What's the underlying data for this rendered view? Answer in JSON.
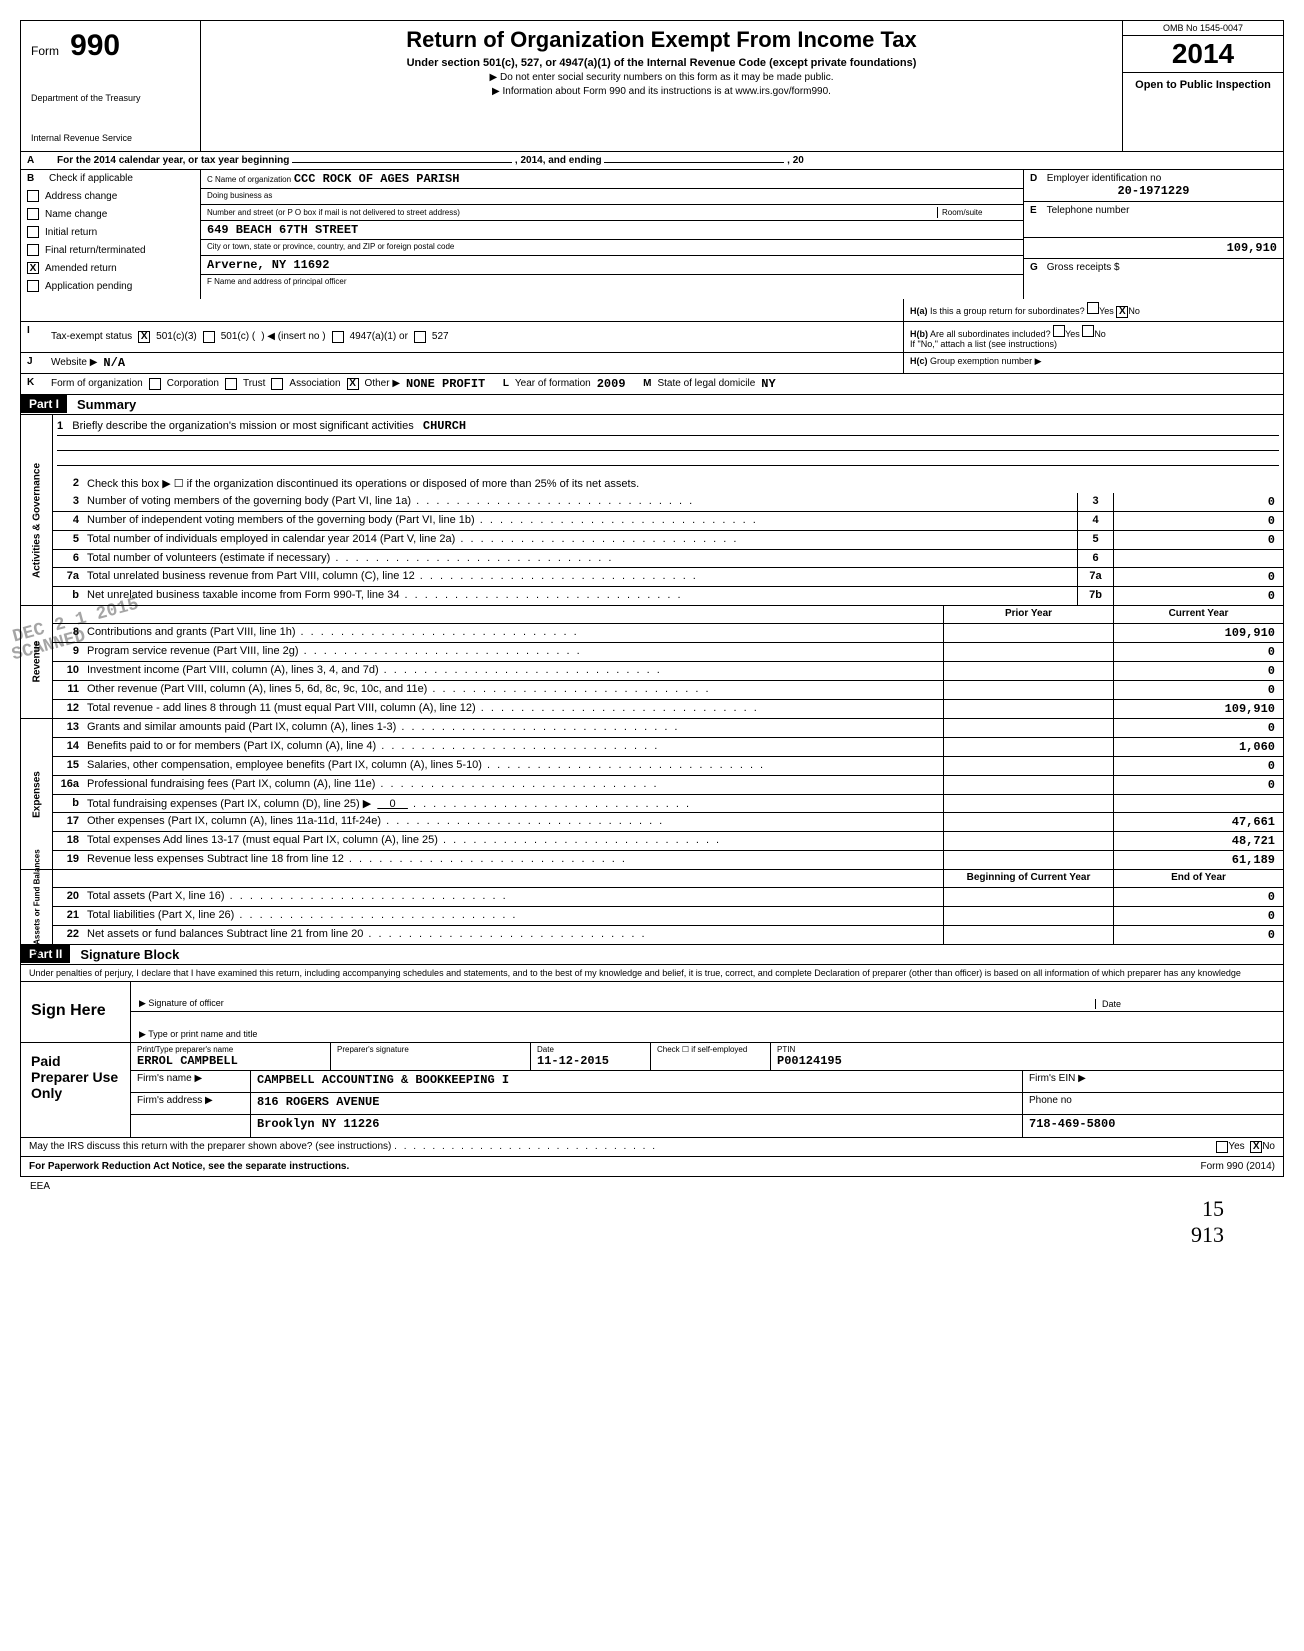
{
  "form": {
    "number_label": "Form",
    "number": "990",
    "dept1": "Department of the Treasury",
    "dept2": "Internal Revenue Service",
    "title": "Return of Organization Exempt From Income Tax",
    "subtitle": "Under section 501(c), 527, or 4947(a)(1) of the Internal Revenue Code (except private foundations)",
    "line1": "▶ Do not enter social security numbers on this form as it may be made public.",
    "line2": "▶ Information about Form 990 and its instructions is at www.irs.gov/form990.",
    "omb": "OMB No 1545-0047",
    "year": "2014",
    "open": "Open to Public Inspection"
  },
  "row_a": {
    "lbl": "A",
    "text1": "For the 2014 calendar year, or tax year beginning",
    "text2": ", 2014, and ending",
    "text3": ", 20"
  },
  "section_b": {
    "lbl": "B",
    "heading": "Check if applicable",
    "items": [
      "Address change",
      "Name change",
      "Initial return",
      "Final return/terminated",
      "Amended return",
      "Application pending"
    ],
    "amended_checked": "X"
  },
  "section_c": {
    "lbl_name": "C  Name of organization",
    "name": "CCC ROCK OF AGES PARISH",
    "dba_lbl": "Doing business as",
    "addr_lbl": "Number and street (or P O box if mail is not delivered to street address)",
    "room_lbl": "Room/suite",
    "addr": "649 BEACH 67TH STREET",
    "city_lbl": "City or town, state or province, country, and ZIP or foreign postal code",
    "city": "Arverne, NY 11692",
    "f_lbl": "F  Name and address of principal officer"
  },
  "section_de": {
    "d_lbl": "D",
    "d_text": "Employer identification no",
    "d_val": "20-1971229",
    "e_lbl": "E",
    "e_text": "Telephone number",
    "gross_val": "109,910",
    "g_lbl": "G",
    "g_text": "Gross receipts $"
  },
  "section_h": {
    "ha_lbl": "H(a)",
    "ha_text": "Is this a group return for subordinates?",
    "ha_no": "X",
    "hb_lbl": "H(b)",
    "hb_text": "Are all subordinates included?",
    "hb_note": "If \"No,\" attach a list (see instructions)",
    "hc_lbl": "H(c)",
    "hc_text": "Group exemption number ▶",
    "yes": "Yes",
    "no": "No"
  },
  "row_i": {
    "lbl": "I",
    "text": "Tax-exempt status",
    "c3_checked": "X",
    "opt1": "501(c)(3)",
    "opt2": "501(c) (",
    "opt2b": ") ◀ (insert no )",
    "opt3": "4947(a)(1) or",
    "opt4": "527"
  },
  "row_j": {
    "lbl": "J",
    "text": "Website ▶",
    "val": "N/A"
  },
  "row_k": {
    "lbl": "K",
    "text": "Form of organization",
    "opts": [
      "Corporation",
      "Trust",
      "Association",
      "Other ▶"
    ],
    "other_checked": "X",
    "other_val": "NONE PROFIT",
    "l_lbl": "L",
    "l_text": "Year of formation",
    "l_val": "2009",
    "m_lbl": "M",
    "m_text": "State of legal domicile",
    "m_val": "NY"
  },
  "part1": {
    "hdr": "Part I",
    "title": "Summary"
  },
  "activities": {
    "side": "Activities & Governance",
    "l1_no": "1",
    "l1_text": "Briefly describe the organization's mission or most significant activities",
    "l1_val": "CHURCH",
    "l2_no": "2",
    "l2_text": "Check this box ▶ ☐ if the organization discontinued its operations or disposed of more than 25% of its net assets.",
    "lines": [
      {
        "no": "3",
        "text": "Number of voting members of the governing body (Part VI, line 1a)",
        "box": "3",
        "val": "0"
      },
      {
        "no": "4",
        "text": "Number of independent voting members of the governing body (Part VI, line 1b)",
        "box": "4",
        "val": "0"
      },
      {
        "no": "5",
        "text": "Total number of individuals employed in calendar year 2014 (Part V, line 2a)",
        "box": "5",
        "val": "0"
      },
      {
        "no": "6",
        "text": "Total number of volunteers (estimate if necessary)",
        "box": "6",
        "val": ""
      },
      {
        "no": "7a",
        "text": "Total unrelated business revenue from Part VIII, column (C), line 12",
        "box": "7a",
        "val": "0"
      },
      {
        "no": "b",
        "text": "Net unrelated business taxable income from Form 990-T, line 34",
        "box": "7b",
        "val": "0"
      }
    ]
  },
  "revenue": {
    "side": "Revenue",
    "hdr_prior": "Prior Year",
    "hdr_current": "Current Year",
    "lines": [
      {
        "no": "8",
        "text": "Contributions and grants (Part VIII, line 1h)",
        "prior": "",
        "cur": "109,910"
      },
      {
        "no": "9",
        "text": "Program service revenue (Part VIII, line 2g)",
        "prior": "",
        "cur": "0"
      },
      {
        "no": "10",
        "text": "Investment income (Part VIII, column (A), lines 3, 4, and 7d)",
        "prior": "",
        "cur": "0"
      },
      {
        "no": "11",
        "text": "Other revenue (Part VIII, column (A), lines 5, 6d, 8c, 9c, 10c, and 11e)",
        "prior": "",
        "cur": "0"
      },
      {
        "no": "12",
        "text": "Total revenue - add lines 8 through 11 (must equal Part VIII, column (A), line 12)",
        "prior": "",
        "cur": "109,910"
      }
    ],
    "stamp1": "SCANNED",
    "stamp2": "DEC 2 1 2015"
  },
  "expenses": {
    "side": "Expenses",
    "lines": [
      {
        "no": "13",
        "text": "Grants and similar amounts paid (Part IX, column (A), lines 1-3)",
        "prior": "",
        "cur": "0"
      },
      {
        "no": "14",
        "text": "Benefits paid to or for members (Part IX, column (A), line 4)",
        "prior": "",
        "cur": "1,060"
      },
      {
        "no": "15",
        "text": "Salaries, other compensation, employee benefits (Part IX, column (A), lines 5-10)",
        "prior": "",
        "cur": "0"
      },
      {
        "no": "16a",
        "text": "Professional fundraising fees (Part IX, column (A), line 11e)",
        "prior": "",
        "cur": "0"
      },
      {
        "no": "b",
        "text": "Total fundraising expenses (Part IX, column (D), line 25) ▶",
        "inline": "0",
        "prior": "",
        "cur": ""
      },
      {
        "no": "17",
        "text": "Other expenses (Part IX, column (A), lines 11a-11d, 11f-24e)",
        "prior": "",
        "cur": "47,661"
      },
      {
        "no": "18",
        "text": "Total expenses  Add lines 13-17 (must equal Part IX, column (A), line 25)",
        "prior": "",
        "cur": "48,721"
      },
      {
        "no": "19",
        "text": "Revenue less expenses  Subtract line 18 from line 12",
        "prior": "",
        "cur": "61,189"
      }
    ]
  },
  "netassets": {
    "side": "Net Assets or Fund Balances",
    "hdr_begin": "Beginning of Current Year",
    "hdr_end": "End of Year",
    "lines": [
      {
        "no": "20",
        "text": "Total assets (Part X, line 16)",
        "prior": "",
        "cur": "0"
      },
      {
        "no": "21",
        "text": "Total liabilities (Part X, line 26)",
        "prior": "",
        "cur": "0"
      },
      {
        "no": "22",
        "text": "Net assets or fund balances  Subtract line 21 from line 20",
        "prior": "",
        "cur": "0"
      }
    ]
  },
  "part2": {
    "hdr": "Part II",
    "title": "Signature Block"
  },
  "perjury": "Under penalties of perjury, I declare that I have examined this return, including accompanying schedules and statements, and to the best of my knowledge and belief, it is true, correct, and complete Declaration of preparer (other than officer) is based on all information of which preparer has any knowledge",
  "sign": {
    "here": "Sign Here",
    "sig_lbl": "Signature of officer",
    "date_lbl": "Date",
    "type_lbl": "Type or print name and title"
  },
  "paid": {
    "left": "Paid Preparer Use Only",
    "r1": {
      "c1_lbl": "Print/Type preparer's name",
      "c1": "ERROL CAMPBELL",
      "c2_lbl": "Preparer's signature",
      "c3_lbl": "Date",
      "c3": "11-12-2015",
      "c4_lbl": "Check ☐ if self-employed",
      "c5_lbl": "PTIN",
      "c5": "P00124195"
    },
    "r2": {
      "lbl": "Firm's name  ▶",
      "val": "CAMPBELL ACCOUNTING & BOOKKEEPING I",
      "ein_lbl": "Firm's EIN ▶"
    },
    "r3": {
      "lbl": "Firm's address ▶",
      "val1": "816 ROGERS AVENUE",
      "phone_lbl": "Phone no"
    },
    "r4": {
      "val": "Brooklyn NY 11226",
      "phone": "718-469-5800"
    }
  },
  "footer": {
    "discuss": "May the IRS discuss this return with the preparer shown above? (see instructions)",
    "yes": "Yes",
    "no": "No",
    "no_checked": "X",
    "paperwork": "For Paperwork Reduction Act Notice, see the separate instructions.",
    "eea": "EEA",
    "form": "Form 990 (2014)",
    "hand1": "15",
    "hand2": "913"
  }
}
